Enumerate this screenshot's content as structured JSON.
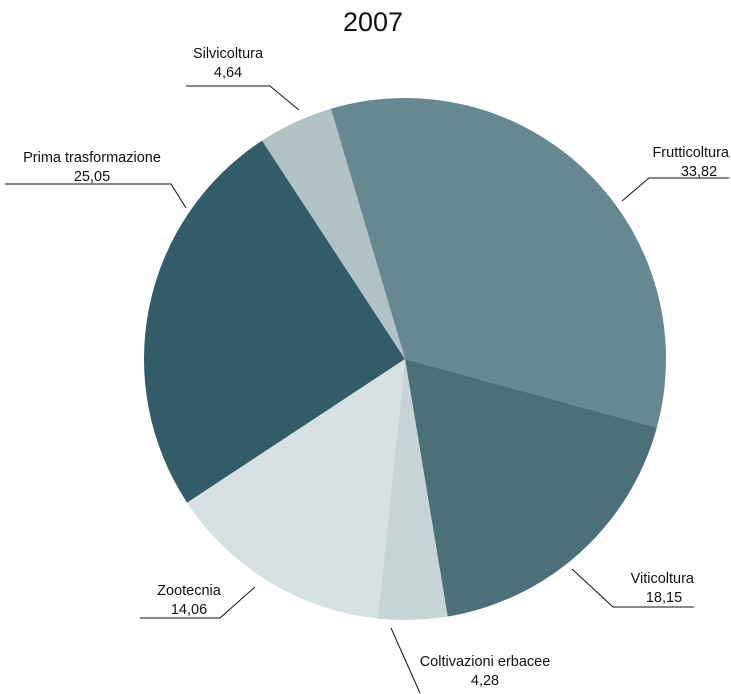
{
  "chart_data": {
    "type": "pie",
    "title": "2007",
    "slices": [
      {
        "label": "Frutticoltura",
        "value_label": "33,82",
        "value": 33.82,
        "color": "#668890"
      },
      {
        "label": "Viticoltura",
        "value_label": "18,15",
        "value": 18.15,
        "color": "#4b707a"
      },
      {
        "label": "Coltivazioni erbacee",
        "value_label": "4,28",
        "value": 4.28,
        "color": "#c7d4d6"
      },
      {
        "label": "Zootecnia",
        "value_label": "14,06",
        "value": 14.06,
        "color": "#d7e0e2"
      },
      {
        "label": "Prima trasformazione",
        "value_label": "25,05",
        "value": 25.05,
        "color": "#325c68"
      },
      {
        "label": "Silvicoltura",
        "value_label": "4,64",
        "value": 4.64,
        "color": "#b1c2c7"
      }
    ]
  }
}
